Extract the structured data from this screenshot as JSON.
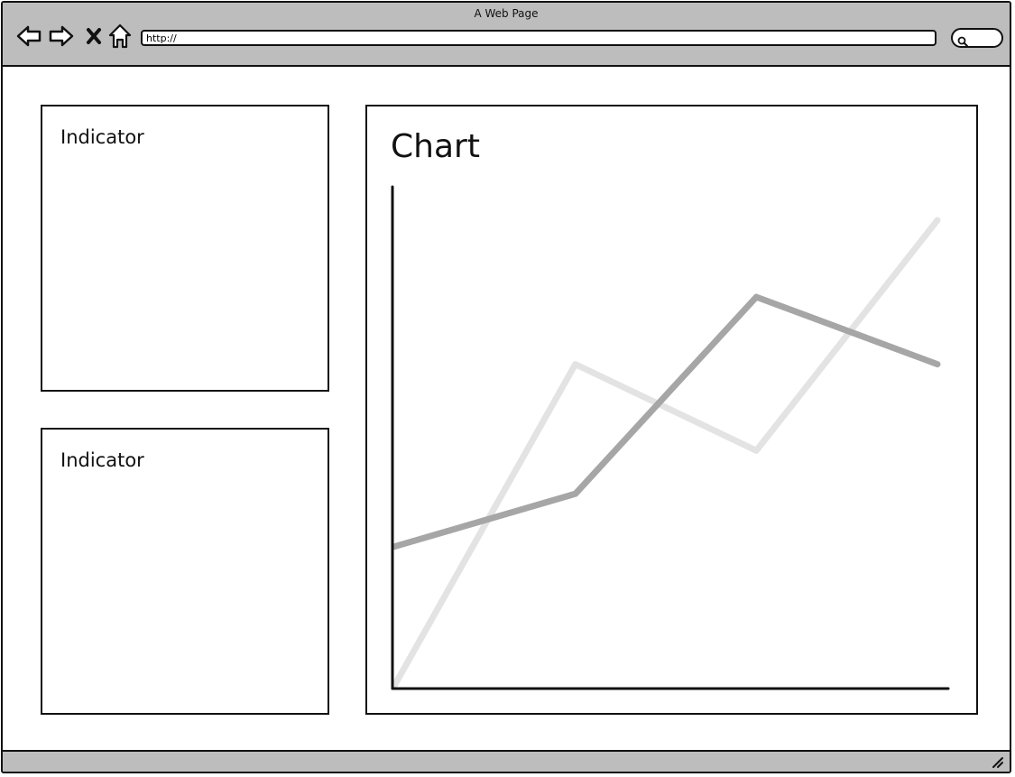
{
  "window": {
    "title": "A Web Page"
  },
  "toolbar": {
    "icons": {
      "back": "back-arrow-icon",
      "forward": "forward-arrow-icon",
      "stop": "close-icon",
      "home": "home-icon",
      "search": "search-icon"
    }
  },
  "address_bar": {
    "value": "http://"
  },
  "indicators": [
    {
      "label": "Indicator"
    },
    {
      "label": "Indicator"
    }
  ],
  "chart_panel": {
    "title": "Chart"
  },
  "colors": {
    "chrome": "#bdbdbd",
    "border": "#111111",
    "series_dark": "#a6a6a6",
    "series_light": "#e3e3e3"
  },
  "chart_data": {
    "type": "line",
    "title": "Chart",
    "xlabel": "",
    "ylabel": "",
    "x": [
      0,
      1,
      2,
      3
    ],
    "xlim": [
      0,
      3
    ],
    "ylim": [
      0,
      100
    ],
    "grid": false,
    "series": [
      {
        "values": [
          0,
          67,
          49,
          97
        ],
        "color": "#e3e3e3"
      },
      {
        "values": [
          29,
          40,
          81,
          67
        ],
        "color": "#a6a6a6"
      }
    ]
  }
}
